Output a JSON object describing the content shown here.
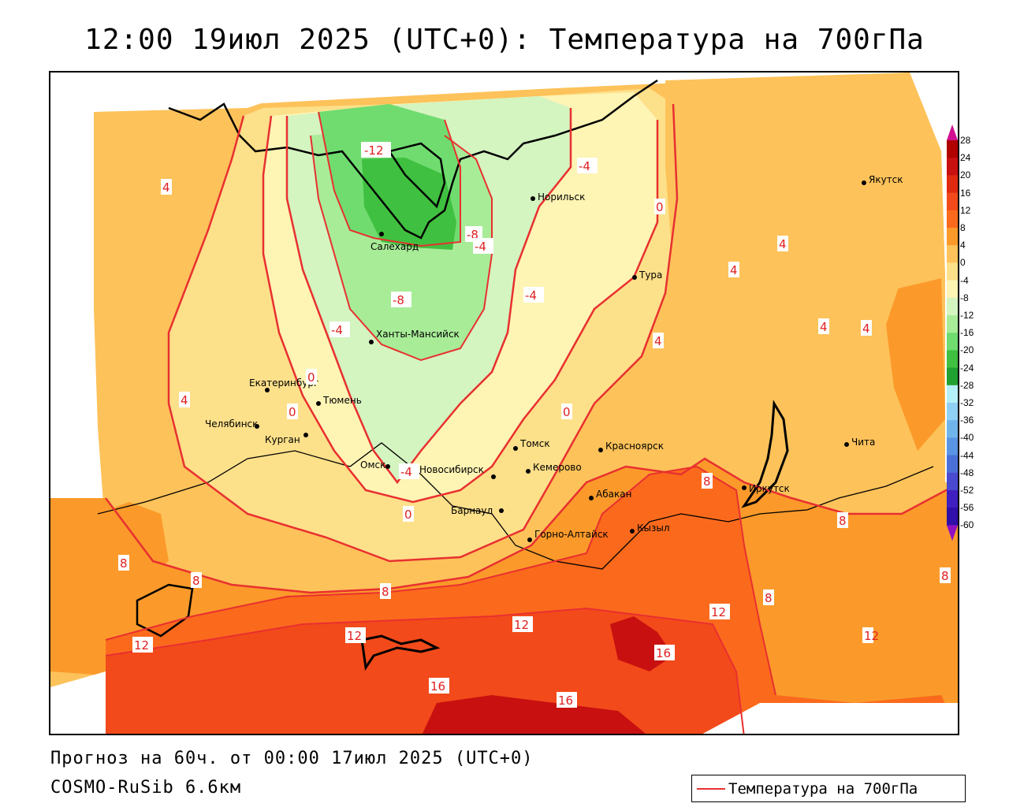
{
  "title": "12:00 19июл 2025 (UTC+0): Температура на 700гПа",
  "forecast_info": "Прогноз на 60ч. от 00:00 17июл 2025 (UTC+0)",
  "model_name": "COSMO-RuSib 6.6км",
  "legend": {
    "line_label": "Температура на 700гПа",
    "line_color": "#e83030"
  },
  "colorbar": {
    "levels": [
      "28",
      "24",
      "20",
      "16",
      "12",
      "8",
      "4",
      "0",
      "-4",
      "-8",
      "-12",
      "-16",
      "-20",
      "-24",
      "-28",
      "-32",
      "-36",
      "-40",
      "-44",
      "-48",
      "-52",
      "-56",
      "-60"
    ],
    "colors": [
      "#b00000",
      "#c81010",
      "#e02a10",
      "#f24a1a",
      "#fb6a1c",
      "#fb9a2a",
      "#fdc25a",
      "#fde08a",
      "#fef4b4",
      "#d4f4c0",
      "#a8ec98",
      "#70dc70",
      "#40c040",
      "#20a030",
      "#b4f0f8",
      "#90d0f4",
      "#70b4ec",
      "#5a94e4",
      "#4a70d8",
      "#4a4ad0",
      "#4020c0",
      "#3010a8",
      "#500090"
    ],
    "top_arrow_color": "#d01090",
    "bottom_arrow_color": "#9010c0"
  },
  "cities": [
    {
      "name": "Якутск"
    },
    {
      "name": "Норильск"
    },
    {
      "name": "Салехард"
    },
    {
      "name": "Тура"
    },
    {
      "name": "Ханты-Мансийск"
    },
    {
      "name": "Екатеринбург"
    },
    {
      "name": "Тюмень"
    },
    {
      "name": "Челябинск"
    },
    {
      "name": "Курган"
    },
    {
      "name": "Омск"
    },
    {
      "name": "Новосибирск"
    },
    {
      "name": "Томск"
    },
    {
      "name": "Кемерово"
    },
    {
      "name": "Барнаул"
    },
    {
      "name": "Красноярск"
    },
    {
      "name": "Абакан"
    },
    {
      "name": "Горно-Алтайск"
    },
    {
      "name": "Кызыл"
    },
    {
      "name": "Иркутск"
    },
    {
      "name": "Чита"
    }
  ],
  "isoline_labels": [
    "-12",
    "-4",
    "-8",
    "-4",
    "4",
    "4",
    "0",
    "4",
    "4",
    "4",
    "4",
    "4",
    "-8",
    "-4",
    "0",
    "-4",
    "0",
    "-4",
    "0",
    "0",
    "8",
    "8",
    "8",
    "8",
    "8",
    "8",
    "8",
    "12",
    "12",
    "12",
    "12",
    "12",
    "16",
    "16",
    "16"
  ]
}
